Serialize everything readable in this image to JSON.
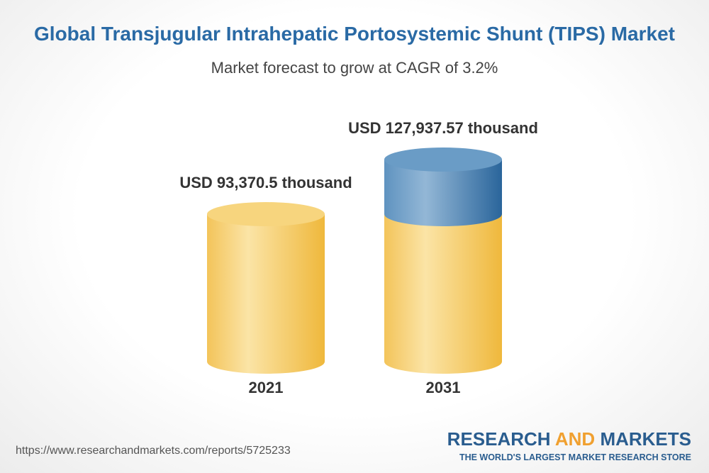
{
  "chart_data": {
    "type": "cylinder",
    "title": "Global Transjugular Intrahepatic Portosystemic Shunt (TIPS) Market",
    "subtitle": "Market forecast to grow at CAGR of 3.2%",
    "categories": [
      "2021",
      "2031"
    ],
    "values": [
      93370.5,
      127937.57
    ],
    "value_labels": [
      "USD 93,370.5 thousand",
      "USD 127,937.57 thousand"
    ],
    "color": "#f4c65a",
    "growth_color": "#2f6ea3"
  },
  "footer": {
    "source": "https://www.researchandmarkets.com/reports/5725233",
    "logo": {
      "research": "RESEARCH",
      "and": "AND",
      "markets": "MARKETS",
      "tagline": "THE WORLD'S LARGEST MARKET RESEARCH STORE"
    }
  }
}
